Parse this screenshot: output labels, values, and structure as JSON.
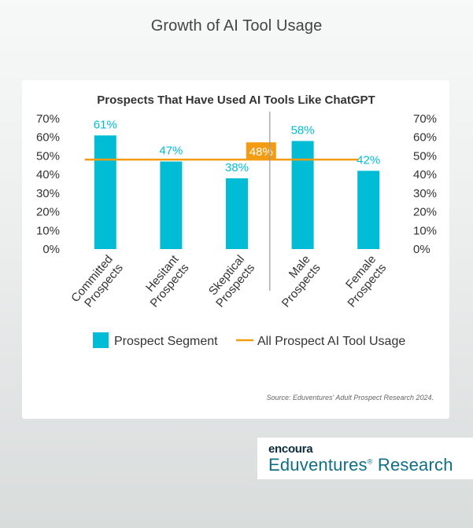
{
  "page": {
    "title": "Growth of AI Tool Usage"
  },
  "branding": {
    "brand": "encoura",
    "name": "Eduventures",
    "mark": "®",
    "suffix": "Research"
  },
  "chart_data": {
    "type": "bar",
    "title": "Prospects That Have Used AI Tools Like ChatGPT",
    "categories": [
      "Committed Prospects",
      "Hesitant Prospects",
      "Skeptical Prospects",
      "Male Prospects",
      "Female Prospects"
    ],
    "category_lines": [
      [
        "Committed",
        "Prospects"
      ],
      [
        "Hesitant",
        "Prospects"
      ],
      [
        "Skeptical",
        "Prospects"
      ],
      [
        "Male",
        "Prospects"
      ],
      [
        "Female",
        "Prospects"
      ]
    ],
    "series": [
      {
        "name": "Prospect Segment",
        "values": [
          61,
          47,
          38,
          58,
          42
        ],
        "labels": [
          "61%",
          "47%",
          "38%",
          "58%",
          "42%"
        ],
        "color": "#00bcd4"
      }
    ],
    "reference_line": {
      "name": "All Prospect AI Tool Usage",
      "value": 48,
      "label": "48%",
      "color": "#f39c12"
    },
    "ylim": [
      0,
      70
    ],
    "y_ticks": [
      0,
      10,
      20,
      30,
      40,
      50,
      60,
      70
    ],
    "y_tick_labels": [
      "0%",
      "10%",
      "20%",
      "30%",
      "40%",
      "50%",
      "60%",
      "70%"
    ],
    "secondary_axis": true,
    "divider_after_category": 2,
    "legend_position": "bottom",
    "source": "Source: Eduventures' Adult Prospect Research 2024."
  }
}
